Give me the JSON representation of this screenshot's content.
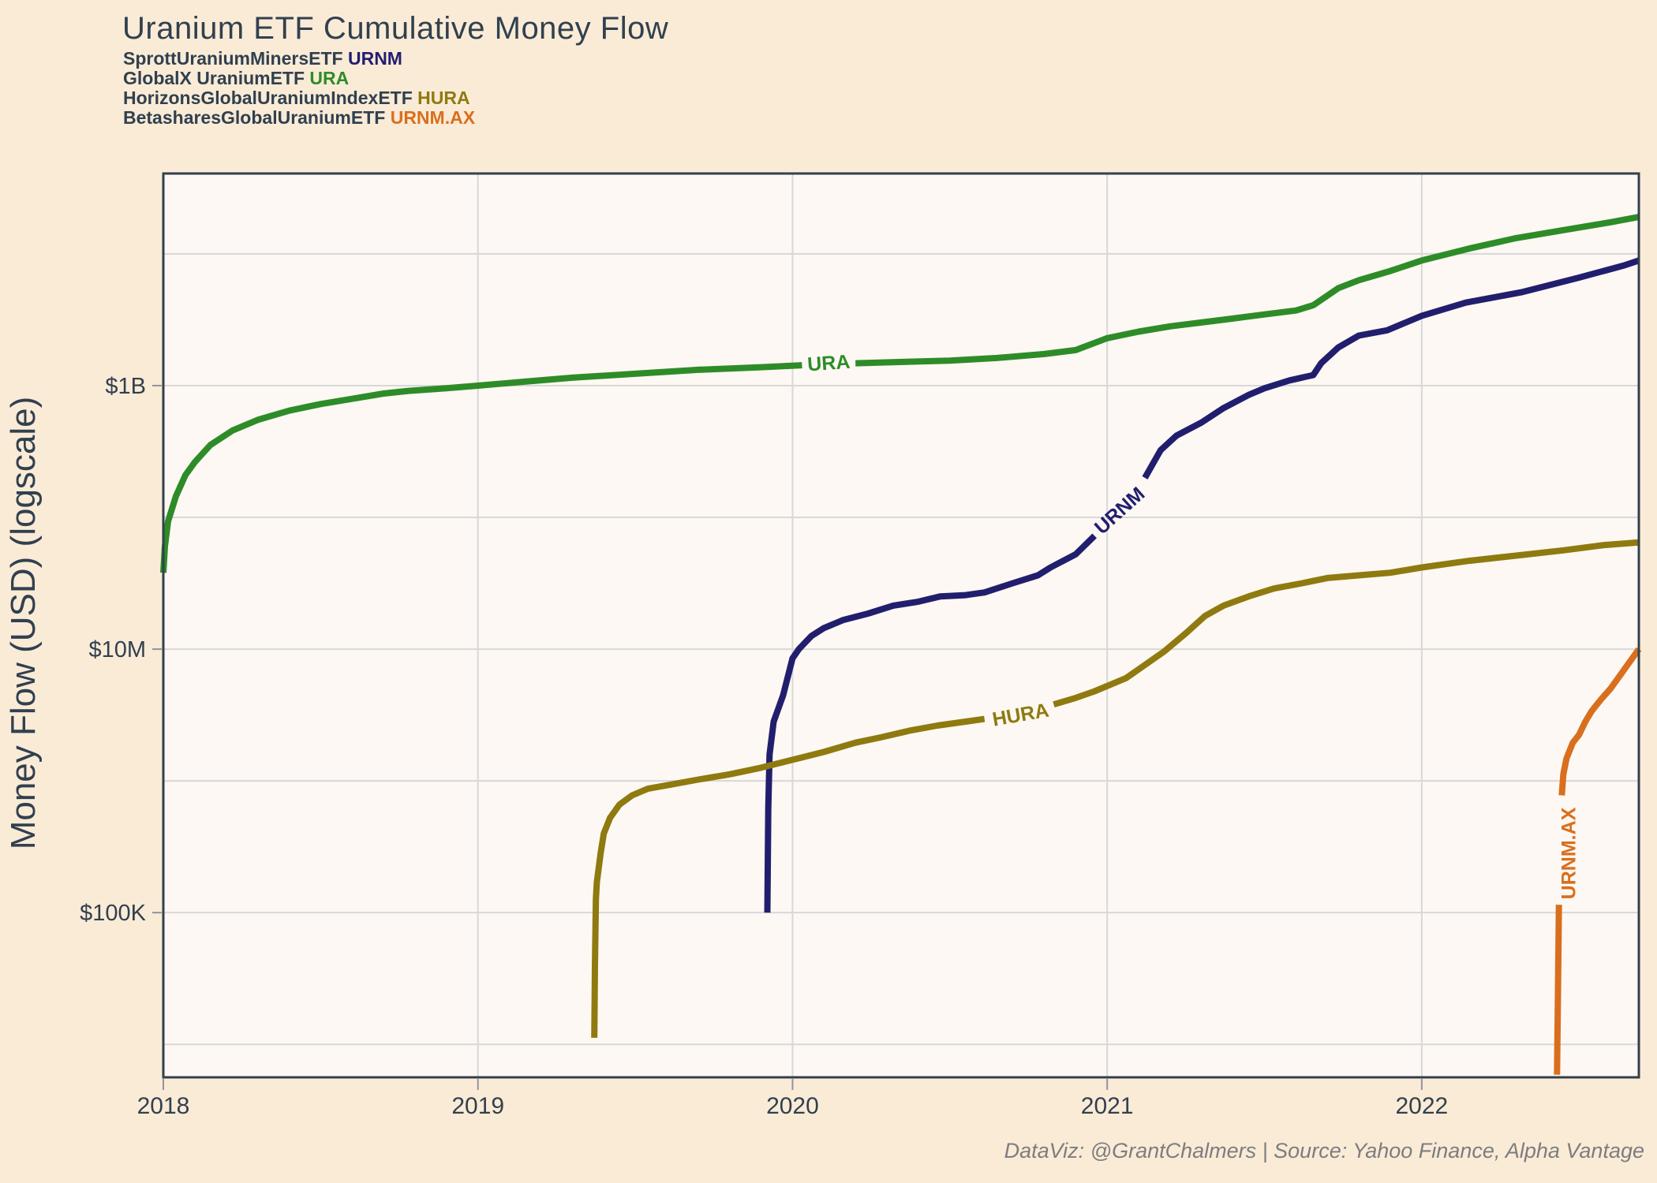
{
  "title": "Uranium ETF Cumulative Money Flow",
  "y_axis_title": "Money Flow (USD) (logscale)",
  "caption": "DataViz: @GrantChalmers | Source: Yahoo Finance, Alpha Vantage",
  "colors": {
    "background": "#faebd7",
    "plot_background": "#fdf8f3",
    "grid": "#d8d8d8",
    "border": "#32404d",
    "text": "#31404e",
    "tick_mark": "#8f959b",
    "caption_text": "#7d7d7d",
    "urnm": "#221e6e",
    "ura": "#2e8c28",
    "hura": "#8f7a10",
    "urnm_ax": "#d96f1e"
  },
  "legend": [
    {
      "name": "SprottUraniumMinersETF",
      "ticker": "URNM",
      "color": "#221e6e"
    },
    {
      "name": "GlobalX UraniumETF",
      "ticker": "URA",
      "color": "#2e8c28"
    },
    {
      "name": "HorizonsGlobalUraniumIndexETF",
      "ticker": "HURA",
      "color": "#8f7a10"
    },
    {
      "name": "BetasharesGlobalUraniumETF",
      "ticker": "URNM.AX",
      "color": "#d96f1e"
    }
  ],
  "chart_data": {
    "type": "line",
    "title": "Uranium ETF Cumulative Money Flow",
    "xlabel": "",
    "ylabel": "Money Flow (USD) (logscale)",
    "x_axis": {
      "range": [
        2018,
        2022.69
      ],
      "ticks": [
        {
          "value": 2018,
          "label": "2018"
        },
        {
          "value": 2019,
          "label": "2019"
        },
        {
          "value": 2020,
          "label": "2020"
        },
        {
          "value": 2021,
          "label": "2021"
        },
        {
          "value": 2022,
          "label": "2022"
        }
      ]
    },
    "y_axis": {
      "scale": "log10",
      "range_log10": [
        3.75,
        10.61
      ],
      "gridlines_log10": [
        4,
        5,
        6,
        7,
        8,
        9,
        10
      ],
      "tick_labels": [
        {
          "log10": 5,
          "label": "$100K"
        },
        {
          "log10": 7,
          "label": "$10M"
        },
        {
          "log10": 9,
          "label": "$1B"
        }
      ]
    },
    "series": [
      {
        "name": "URA",
        "color": "#2e8c28",
        "label": {
          "text": "URA",
          "x": 2020.115,
          "log10": 9.17,
          "angle": -4
        },
        "segments": [
          [
            [
              2018.0,
              7.58
            ],
            [
              2018.005,
              7.78
            ],
            [
              2018.015,
              7.97
            ],
            [
              2018.04,
              8.16
            ],
            [
              2018.07,
              8.32
            ],
            [
              2018.1,
              8.42
            ],
            [
              2018.15,
              8.55
            ],
            [
              2018.22,
              8.66
            ],
            [
              2018.3,
              8.74
            ],
            [
              2018.4,
              8.81
            ],
            [
              2018.5,
              8.86
            ],
            [
              2018.6,
              8.9
            ],
            [
              2018.7,
              8.94
            ],
            [
              2018.78,
              8.96
            ],
            [
              2018.9,
              8.98
            ],
            [
              2019.0,
              9.0
            ],
            [
              2019.15,
              9.03
            ],
            [
              2019.3,
              9.06
            ],
            [
              2019.5,
              9.09
            ],
            [
              2019.7,
              9.12
            ],
            [
              2019.9,
              9.14
            ],
            [
              2020.03,
              9.155
            ]
          ],
          [
            [
              2020.2,
              9.17
            ],
            [
              2020.35,
              9.18
            ],
            [
              2020.5,
              9.19
            ],
            [
              2020.65,
              9.21
            ],
            [
              2020.8,
              9.24
            ],
            [
              2020.9,
              9.27
            ],
            [
              2021.0,
              9.36
            ],
            [
              2021.1,
              9.41
            ],
            [
              2021.2,
              9.45
            ],
            [
              2021.37,
              9.5
            ],
            [
              2021.5,
              9.54
            ],
            [
              2021.6,
              9.57
            ],
            [
              2021.655,
              9.61
            ],
            [
              2021.735,
              9.74
            ],
            [
              2021.8,
              9.8
            ],
            [
              2021.9,
              9.87
            ],
            [
              2022.0,
              9.95
            ],
            [
              2022.15,
              10.04
            ],
            [
              2022.3,
              10.12
            ],
            [
              2022.45,
              10.18
            ],
            [
              2022.6,
              10.24
            ],
            [
              2022.69,
              10.28
            ]
          ]
        ]
      },
      {
        "name": "URNM",
        "color": "#221e6e",
        "label": {
          "text": "URNM",
          "x": 2021.04,
          "log10": 8.05,
          "angle": -42
        },
        "segments": [
          [
            [
              2019.92,
              5.0
            ],
            [
              2019.923,
              5.8
            ],
            [
              2019.927,
              6.2
            ],
            [
              2019.94,
              6.45
            ],
            [
              2019.97,
              6.65
            ],
            [
              2020.0,
              6.93
            ],
            [
              2020.02,
              7.0
            ],
            [
              2020.06,
              7.1
            ],
            [
              2020.1,
              7.16
            ],
            [
              2020.16,
              7.22
            ],
            [
              2020.24,
              7.27
            ],
            [
              2020.32,
              7.33
            ],
            [
              2020.4,
              7.36
            ],
            [
              2020.47,
              7.4
            ],
            [
              2020.55,
              7.41
            ],
            [
              2020.61,
              7.43
            ],
            [
              2020.7,
              7.5
            ],
            [
              2020.78,
              7.56
            ],
            [
              2020.82,
              7.62
            ],
            [
              2020.9,
              7.72
            ],
            [
              2020.96,
              7.86
            ]
          ],
          [
            [
              2021.12,
              8.3
            ],
            [
              2021.17,
              8.51
            ],
            [
              2021.22,
              8.62
            ],
            [
              2021.3,
              8.72
            ],
            [
              2021.37,
              8.83
            ],
            [
              2021.45,
              8.93
            ],
            [
              2021.5,
              8.98
            ],
            [
              2021.58,
              9.04
            ],
            [
              2021.655,
              9.08
            ],
            [
              2021.68,
              9.17
            ],
            [
              2021.735,
              9.29
            ],
            [
              2021.8,
              9.38
            ],
            [
              2021.89,
              9.42
            ],
            [
              2022.0,
              9.53
            ],
            [
              2022.14,
              9.63
            ],
            [
              2022.32,
              9.71
            ],
            [
              2022.5,
              9.82
            ],
            [
              2022.64,
              9.91
            ],
            [
              2022.69,
              9.95
            ]
          ]
        ]
      },
      {
        "name": "HURA",
        "color": "#8f7a10",
        "label": {
          "text": "HURA",
          "x": 2020.725,
          "log10": 6.5,
          "angle": -10
        },
        "segments": [
          [
            [
              2019.37,
              4.05
            ],
            [
              2019.372,
              4.6
            ],
            [
              2019.375,
              5.1
            ],
            [
              2019.378,
              5.23
            ],
            [
              2019.39,
              5.45
            ],
            [
              2019.4,
              5.6
            ],
            [
              2019.42,
              5.72
            ],
            [
              2019.45,
              5.82
            ],
            [
              2019.49,
              5.89
            ],
            [
              2019.54,
              5.94
            ],
            [
              2019.61,
              5.97
            ],
            [
              2019.7,
              6.01
            ],
            [
              2019.8,
              6.05
            ],
            [
              2019.9,
              6.1
            ],
            [
              2020.0,
              6.16
            ],
            [
              2020.1,
              6.22
            ],
            [
              2020.2,
              6.29
            ],
            [
              2020.28,
              6.33
            ],
            [
              2020.37,
              6.38
            ],
            [
              2020.46,
              6.42
            ],
            [
              2020.55,
              6.45
            ],
            [
              2020.61,
              6.47
            ]
          ],
          [
            [
              2020.83,
              6.58
            ],
            [
              2020.9,
              6.63
            ],
            [
              2020.96,
              6.68
            ],
            [
              2021.0,
              6.72
            ],
            [
              2021.06,
              6.78
            ],
            [
              2021.12,
              6.88
            ],
            [
              2021.18,
              6.98
            ],
            [
              2021.25,
              7.12
            ],
            [
              2021.31,
              7.25
            ],
            [
              2021.37,
              7.33
            ],
            [
              2021.45,
              7.4
            ],
            [
              2021.53,
              7.46
            ],
            [
              2021.62,
              7.5
            ],
            [
              2021.7,
              7.54
            ],
            [
              2021.8,
              7.56
            ],
            [
              2021.9,
              7.58
            ],
            [
              2022.0,
              7.62
            ],
            [
              2022.15,
              7.67
            ],
            [
              2022.3,
              7.71
            ],
            [
              2022.45,
              7.75
            ],
            [
              2022.58,
              7.79
            ],
            [
              2022.69,
              7.81
            ]
          ]
        ]
      },
      {
        "name": "URNM.AX",
        "color": "#d96f1e",
        "label": {
          "text": "URNM.AX",
          "x": 2022.468,
          "log10": 5.45,
          "angle": -90
        },
        "segments": [
          [
            [
              2022.43,
              3.77
            ],
            [
              2022.433,
              4.4
            ],
            [
              2022.436,
              5.06
            ]
          ],
          [
            [
              2022.445,
              5.89
            ],
            [
              2022.45,
              6.05
            ],
            [
              2022.46,
              6.17
            ],
            [
              2022.48,
              6.29
            ],
            [
              2022.5,
              6.35
            ],
            [
              2022.52,
              6.45
            ],
            [
              2022.54,
              6.53
            ],
            [
              2022.57,
              6.62
            ],
            [
              2022.6,
              6.7
            ],
            [
              2022.63,
              6.8
            ],
            [
              2022.66,
              6.9
            ],
            [
              2022.69,
              7.0
            ]
          ]
        ]
      }
    ]
  }
}
